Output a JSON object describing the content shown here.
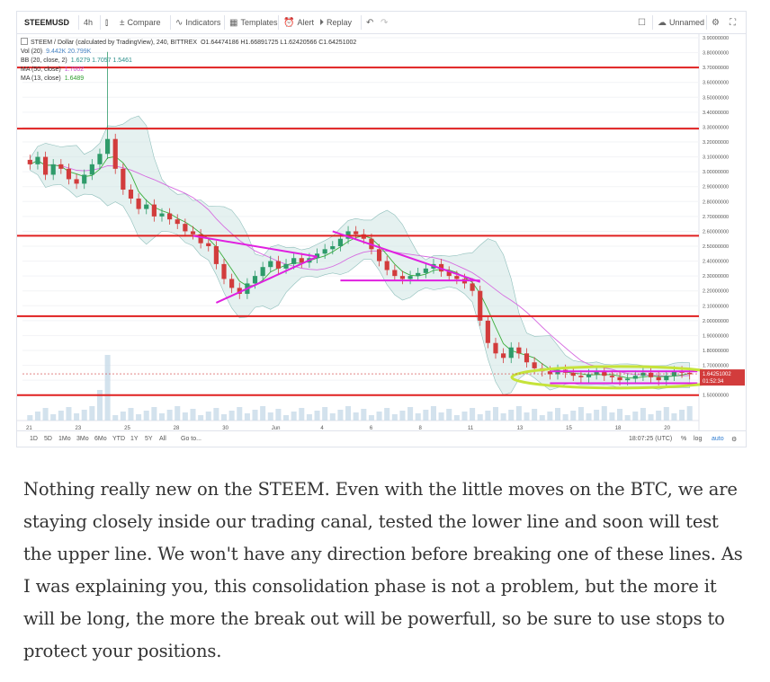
{
  "toolbar": {
    "symbol": "STEEMUSD",
    "interval": "4h",
    "compare_label": "Compare",
    "indicators_label": "Indicators",
    "templates_label": "Templates",
    "alert_label": "Alert",
    "replay_label": "Replay",
    "layout_name": "Unnamed"
  },
  "legend": {
    "main_title": "STEEM / Dollar (calculated by TradingView), 240, BITTREX",
    "ohlc": "O1.64474186 H1.66891725 L1.62420566 C1.64251002",
    "vol_label": "Vol (20)",
    "vol_value": "9.442K 20.799K",
    "bb_label": "BB (20, close, 2)",
    "bb_values": "1.6279 1.7057 1.5461",
    "ma50_label": "MA (50, close)",
    "ma50_value": "1.7002",
    "ma13_label": "MA (13, close)",
    "ma13_value": "1.6489"
  },
  "price_axis": {
    "ticks": [
      "3.90000000",
      "3.80000000",
      "3.70000000",
      "3.60000000",
      "3.50000000",
      "3.40000000",
      "3.30000000",
      "3.20000000",
      "3.10000000",
      "3.00000000",
      "2.90000000",
      "2.80000000",
      "2.70000000",
      "2.60000000",
      "2.50000000",
      "2.40000000",
      "2.30000000",
      "2.20000000",
      "2.10000000",
      "2.00000000",
      "1.90000000",
      "1.80000000",
      "1.70000000",
      "1.60000000",
      "1.50000000"
    ],
    "last_price": "1.64251002",
    "countdown": "01:52:34"
  },
  "time_axis": {
    "labels": [
      "21",
      "23",
      "25",
      "28",
      "30",
      "Jun",
      "4",
      "6",
      "8",
      "11",
      "13",
      "15",
      "18",
      "20"
    ]
  },
  "bottom_bar": {
    "ranges": [
      "1D",
      "5D",
      "1Mo",
      "3Mo",
      "6Mo",
      "YTD",
      "1Y",
      "5Y",
      "All"
    ],
    "goto": "Go to...",
    "clock": "18:07:25 (UTC)",
    "percent": "%",
    "log": "log",
    "auto": "auto"
  },
  "colors": {
    "support_resistance": "#e02020",
    "trendlines": "#e020e0",
    "highlight_ellipse": "#c6e33a",
    "candle_up": "#2e9b6a",
    "candle_down": "#d23c3c",
    "bollinger_fill": "#cfe6e3",
    "ma50": "#d66be0",
    "ma13": "#3cae3c",
    "volume": "#c8dbe9",
    "price_tag": "#d23c3c"
  },
  "chart_data": {
    "type": "candlestick",
    "title": "STEEM / Dollar (calculated by TradingView), 240, BITTREX",
    "ylim": [
      1.45,
      3.9
    ],
    "horizontal_levels": [
      3.7,
      3.29,
      2.57,
      2.03,
      1.5
    ],
    "closes": [
      3.05,
      3.1,
      2.98,
      3.05,
      3.02,
      2.95,
      2.92,
      2.98,
      3.05,
      3.12,
      3.22,
      3.02,
      2.88,
      2.82,
      2.75,
      2.78,
      2.7,
      2.72,
      2.68,
      2.65,
      2.6,
      2.58,
      2.52,
      2.5,
      2.38,
      2.28,
      2.22,
      2.18,
      2.25,
      2.3,
      2.36,
      2.4,
      2.35,
      2.38,
      2.42,
      2.39,
      2.42,
      2.45,
      2.48,
      2.5,
      2.55,
      2.6,
      2.58,
      2.55,
      2.48,
      2.4,
      2.34,
      2.3,
      2.28,
      2.3,
      2.32,
      2.35,
      2.38,
      2.33,
      2.3,
      2.28,
      2.25,
      2.2,
      2.0,
      1.85,
      1.78,
      1.75,
      1.82,
      1.78,
      1.72,
      1.68,
      1.66,
      1.64,
      1.67,
      1.65,
      1.63,
      1.62,
      1.64,
      1.66,
      1.63,
      1.62,
      1.6,
      1.61,
      1.63,
      1.65,
      1.62,
      1.6,
      1.63,
      1.66,
      1.65,
      1.64
    ]
  },
  "article": {
    "text": "Nothing really new on the STEEM. Even with the little moves on the BTC, we are staying closely inside our trading canal, tested the lower line and soon will test the upper line. We won't have any direction before breaking one of these lines. As I was explaining you, this consolidation phase is not a problem, but the more it will be long, the more the break out will be powerfull, so be sure to use stops to protect your positions."
  }
}
